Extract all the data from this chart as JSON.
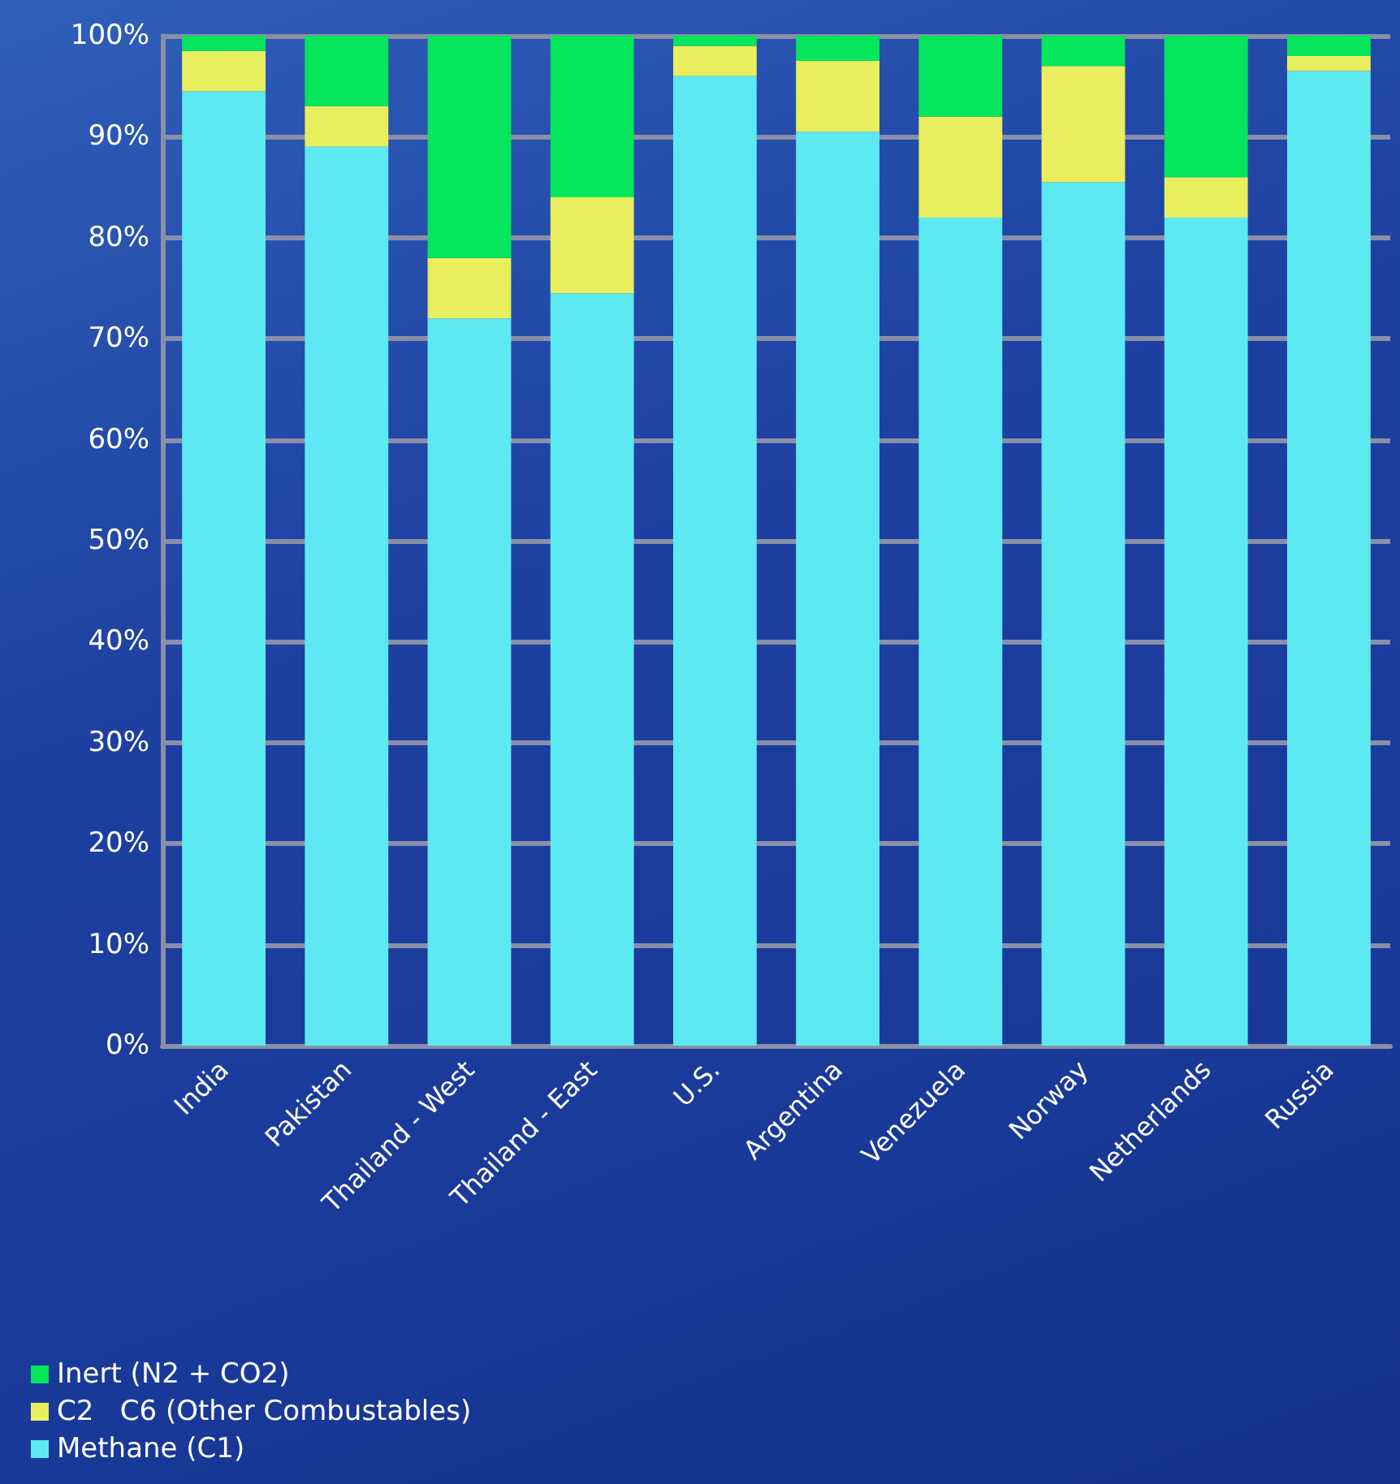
{
  "chart_data": {
    "type": "bar",
    "stacked": true,
    "categories": [
      "India",
      "Pakistan",
      "Thailand - West",
      "Thailand - East",
      "U.S.",
      "Argentina",
      "Venezuela",
      "Norway",
      "Netherlands",
      "Russia"
    ],
    "series": [
      {
        "name": "Methane (C1)",
        "color": "#5de9f2",
        "values": [
          94.5,
          89,
          72,
          74.5,
          96,
          90.5,
          82,
          85.5,
          82,
          96.5
        ]
      },
      {
        "name": "C2   C6 (Other Combustables)",
        "color": "#e8ee5e",
        "values": [
          4,
          4,
          6,
          9.5,
          3,
          7,
          10,
          11.5,
          4,
          1.5
        ]
      },
      {
        "name": "Inert (N2 + CO2)",
        "color": "#05e65c",
        "values": [
          1.5,
          7,
          22,
          16,
          1,
          2.5,
          8,
          3,
          14,
          2
        ]
      }
    ],
    "ylim": [
      0,
      100
    ],
    "yticks": [
      {
        "value": 0,
        "label": "0%"
      },
      {
        "value": 10,
        "label": "10%"
      },
      {
        "value": 20,
        "label": "20%"
      },
      {
        "value": 30,
        "label": "30%"
      },
      {
        "value": 40,
        "label": "40%"
      },
      {
        "value": 50,
        "label": "50%"
      },
      {
        "value": 60,
        "label": "60%"
      },
      {
        "value": 70,
        "label": "70%"
      },
      {
        "value": 80,
        "label": "80%"
      },
      {
        "value": 90,
        "label": "90%"
      },
      {
        "value": 100,
        "label": "100%"
      }
    ],
    "grid": "y",
    "legend": "bottom left"
  }
}
